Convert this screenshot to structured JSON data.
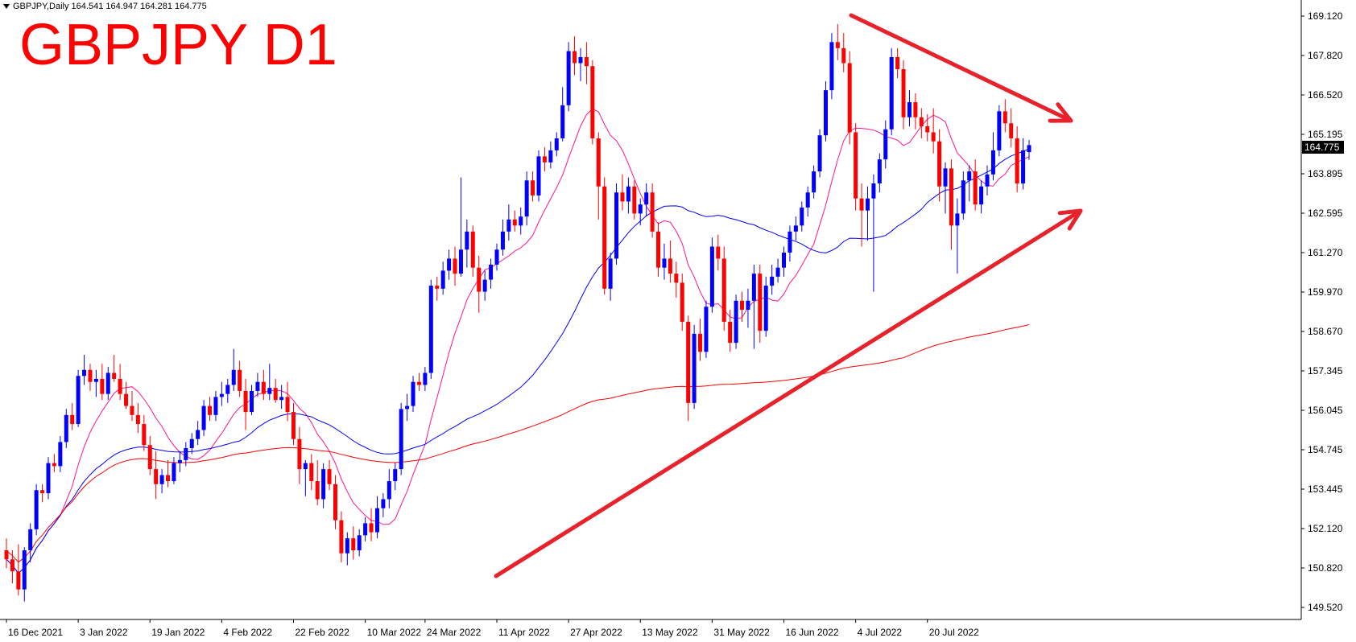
{
  "header": {
    "symbol_line": "GBPJPY,Daily  164.541 164.947 164.281 164.775",
    "title_overlay": "GBPJPY D1"
  },
  "colors": {
    "bull": "#0000ff",
    "bear": "#ff0000",
    "ma_fast": "#ff1493",
    "ma_mid": "#0000ff",
    "ma_slow": "#ff0000",
    "trendline": "#e8222a",
    "axis": "#000000"
  },
  "chart_data": {
    "type": "candlestick",
    "symbol": "GBPJPY",
    "timeframe": "Daily",
    "last_price": "164.775",
    "ohlc_last": {
      "open": 164.541,
      "high": 164.947,
      "low": 164.281,
      "close": 164.775
    },
    "ylim": [
      149.0,
      169.6
    ],
    "y_ticks": [
      "169.120",
      "167.820",
      "166.520",
      "165.195",
      "163.895",
      "162.595",
      "161.270",
      "159.970",
      "158.670",
      "157.345",
      "156.045",
      "154.745",
      "153.445",
      "152.120",
      "150.820",
      "149.520"
    ],
    "x_ticks": [
      "16 Dec 2021",
      "3 Jan 2022",
      "19 Jan 2022",
      "4 Feb 2022",
      "22 Feb 2022",
      "10 Mar 2022",
      "24 Mar 2022",
      "11 Apr 2022",
      "27 Apr 2022",
      "13 May 2022",
      "31 May 2022",
      "16 Jun 2022",
      "4 Jul 2022",
      "20 Jul 2022"
    ],
    "x_tick_index": [
      0,
      12,
      24,
      36,
      48,
      60,
      70,
      82,
      94,
      106,
      118,
      130,
      142,
      154
    ],
    "candles": [
      {
        "o": 151.3,
        "h": 151.7,
        "l": 150.7,
        "c": 151.0
      },
      {
        "o": 151.0,
        "h": 151.3,
        "l": 150.2,
        "c": 150.6
      },
      {
        "o": 150.6,
        "h": 151.5,
        "l": 149.8,
        "c": 150.0
      },
      {
        "o": 150.0,
        "h": 151.4,
        "l": 149.6,
        "c": 151.3
      },
      {
        "o": 151.3,
        "h": 152.2,
        "l": 150.9,
        "c": 152.0
      },
      {
        "o": 152.0,
        "h": 153.5,
        "l": 151.8,
        "c": 153.3
      },
      {
        "o": 153.3,
        "h": 153.5,
        "l": 152.9,
        "c": 153.2
      },
      {
        "o": 153.2,
        "h": 154.4,
        "l": 153.0,
        "c": 154.2
      },
      {
        "o": 154.2,
        "h": 154.5,
        "l": 153.9,
        "c": 154.1
      },
      {
        "o": 154.1,
        "h": 155.1,
        "l": 153.9,
        "c": 154.9
      },
      {
        "o": 154.9,
        "h": 156.0,
        "l": 154.7,
        "c": 155.8
      },
      {
        "o": 155.8,
        "h": 156.2,
        "l": 155.3,
        "c": 155.5
      },
      {
        "o": 155.5,
        "h": 157.3,
        "l": 155.4,
        "c": 157.1
      },
      {
        "o": 157.1,
        "h": 157.8,
        "l": 156.8,
        "c": 157.3
      },
      {
        "o": 157.3,
        "h": 157.5,
        "l": 156.6,
        "c": 156.9
      },
      {
        "o": 156.9,
        "h": 157.3,
        "l": 156.4,
        "c": 157.0
      },
      {
        "o": 157.0,
        "h": 157.5,
        "l": 156.3,
        "c": 156.5
      },
      {
        "o": 156.5,
        "h": 157.4,
        "l": 156.3,
        "c": 157.2
      },
      {
        "o": 157.2,
        "h": 157.8,
        "l": 156.9,
        "c": 157.0
      },
      {
        "o": 157.0,
        "h": 157.5,
        "l": 156.3,
        "c": 156.5
      },
      {
        "o": 156.5,
        "h": 156.9,
        "l": 156.0,
        "c": 156.1
      },
      {
        "o": 156.1,
        "h": 156.6,
        "l": 155.6,
        "c": 155.8
      },
      {
        "o": 155.8,
        "h": 156.2,
        "l": 155.2,
        "c": 155.5
      },
      {
        "o": 155.5,
        "h": 155.8,
        "l": 154.6,
        "c": 154.8
      },
      {
        "o": 154.8,
        "h": 155.1,
        "l": 153.8,
        "c": 154.0
      },
      {
        "o": 154.0,
        "h": 154.6,
        "l": 153.0,
        "c": 153.5
      },
      {
        "o": 153.5,
        "h": 154.0,
        "l": 153.2,
        "c": 153.8
      },
      {
        "o": 153.8,
        "h": 154.3,
        "l": 153.4,
        "c": 153.6
      },
      {
        "o": 153.6,
        "h": 154.4,
        "l": 153.5,
        "c": 154.2
      },
      {
        "o": 154.2,
        "h": 154.6,
        "l": 153.9,
        "c": 154.3
      },
      {
        "o": 154.3,
        "h": 154.9,
        "l": 154.1,
        "c": 154.7
      },
      {
        "o": 154.7,
        "h": 155.2,
        "l": 154.5,
        "c": 155.0
      },
      {
        "o": 155.0,
        "h": 155.6,
        "l": 154.8,
        "c": 155.3
      },
      {
        "o": 155.3,
        "h": 156.3,
        "l": 155.1,
        "c": 156.1
      },
      {
        "o": 156.1,
        "h": 156.4,
        "l": 155.6,
        "c": 155.8
      },
      {
        "o": 155.8,
        "h": 156.6,
        "l": 155.6,
        "c": 156.4
      },
      {
        "o": 156.4,
        "h": 156.9,
        "l": 156.1,
        "c": 156.5
      },
      {
        "o": 156.5,
        "h": 157.0,
        "l": 156.2,
        "c": 156.8
      },
      {
        "o": 156.8,
        "h": 158.0,
        "l": 156.6,
        "c": 157.3
      },
      {
        "o": 157.3,
        "h": 157.6,
        "l": 156.4,
        "c": 156.6
      },
      {
        "o": 156.6,
        "h": 157.0,
        "l": 155.3,
        "c": 155.9
      },
      {
        "o": 155.9,
        "h": 156.8,
        "l": 155.8,
        "c": 156.6
      },
      {
        "o": 156.6,
        "h": 157.2,
        "l": 156.4,
        "c": 156.9
      },
      {
        "o": 156.9,
        "h": 157.3,
        "l": 156.3,
        "c": 156.5
      },
      {
        "o": 156.5,
        "h": 157.5,
        "l": 156.3,
        "c": 156.7
      },
      {
        "o": 156.7,
        "h": 157.0,
        "l": 156.2,
        "c": 156.3
      },
      {
        "o": 156.3,
        "h": 156.8,
        "l": 156.0,
        "c": 156.4
      },
      {
        "o": 156.4,
        "h": 156.9,
        "l": 155.6,
        "c": 155.9
      },
      {
        "o": 155.9,
        "h": 156.2,
        "l": 154.8,
        "c": 155.0
      },
      {
        "o": 155.0,
        "h": 155.4,
        "l": 153.5,
        "c": 154.0
      },
      {
        "o": 154.0,
        "h": 154.3,
        "l": 153.1,
        "c": 154.2
      },
      {
        "o": 154.2,
        "h": 154.5,
        "l": 153.3,
        "c": 153.6
      },
      {
        "o": 153.6,
        "h": 154.3,
        "l": 152.8,
        "c": 153.0
      },
      {
        "o": 153.0,
        "h": 154.2,
        "l": 152.7,
        "c": 154.0
      },
      {
        "o": 154.0,
        "h": 154.3,
        "l": 153.3,
        "c": 153.5
      },
      {
        "o": 153.5,
        "h": 153.8,
        "l": 152.0,
        "c": 152.3
      },
      {
        "o": 152.3,
        "h": 152.6,
        "l": 150.9,
        "c": 151.2
      },
      {
        "o": 151.2,
        "h": 151.9,
        "l": 150.8,
        "c": 151.7
      },
      {
        "o": 151.7,
        "h": 152.1,
        "l": 151.0,
        "c": 151.3
      },
      {
        "o": 151.3,
        "h": 152.0,
        "l": 151.1,
        "c": 151.8
      },
      {
        "o": 151.8,
        "h": 152.4,
        "l": 151.6,
        "c": 152.2
      },
      {
        "o": 152.2,
        "h": 152.7,
        "l": 151.6,
        "c": 151.9
      },
      {
        "o": 151.9,
        "h": 153.1,
        "l": 151.7,
        "c": 152.7
      },
      {
        "o": 152.7,
        "h": 153.2,
        "l": 152.4,
        "c": 153.0
      },
      {
        "o": 153.0,
        "h": 154.0,
        "l": 152.7,
        "c": 153.6
      },
      {
        "o": 153.6,
        "h": 154.2,
        "l": 153.3,
        "c": 154.0
      },
      {
        "o": 154.0,
        "h": 156.2,
        "l": 153.8,
        "c": 156.0
      },
      {
        "o": 156.0,
        "h": 156.5,
        "l": 155.6,
        "c": 156.1
      },
      {
        "o": 156.1,
        "h": 157.1,
        "l": 155.9,
        "c": 156.9
      },
      {
        "o": 156.9,
        "h": 157.2,
        "l": 156.6,
        "c": 156.8
      },
      {
        "o": 156.8,
        "h": 157.4,
        "l": 156.6,
        "c": 157.2
      },
      {
        "o": 157.2,
        "h": 160.3,
        "l": 157.0,
        "c": 160.1
      },
      {
        "o": 160.1,
        "h": 160.4,
        "l": 159.6,
        "c": 160.0
      },
      {
        "o": 160.0,
        "h": 160.9,
        "l": 159.8,
        "c": 160.6
      },
      {
        "o": 160.6,
        "h": 161.3,
        "l": 160.3,
        "c": 161.0
      },
      {
        "o": 161.0,
        "h": 161.4,
        "l": 160.1,
        "c": 160.5
      },
      {
        "o": 160.5,
        "h": 163.7,
        "l": 160.4,
        "c": 161.3
      },
      {
        "o": 161.3,
        "h": 162.3,
        "l": 160.7,
        "c": 161.9
      },
      {
        "o": 161.9,
        "h": 162.1,
        "l": 160.4,
        "c": 160.7
      },
      {
        "o": 160.7,
        "h": 161.1,
        "l": 159.2,
        "c": 159.9
      },
      {
        "o": 159.9,
        "h": 160.6,
        "l": 159.6,
        "c": 160.3
      },
      {
        "o": 160.3,
        "h": 161.0,
        "l": 160.0,
        "c": 160.8
      },
      {
        "o": 160.8,
        "h": 161.5,
        "l": 160.6,
        "c": 161.3
      },
      {
        "o": 161.3,
        "h": 162.3,
        "l": 161.1,
        "c": 161.9
      },
      {
        "o": 161.9,
        "h": 162.8,
        "l": 161.6,
        "c": 162.3
      },
      {
        "o": 162.3,
        "h": 162.6,
        "l": 161.9,
        "c": 162.1
      },
      {
        "o": 162.1,
        "h": 162.7,
        "l": 161.8,
        "c": 162.4
      },
      {
        "o": 162.4,
        "h": 163.9,
        "l": 162.1,
        "c": 163.6
      },
      {
        "o": 163.6,
        "h": 163.9,
        "l": 162.9,
        "c": 163.1
      },
      {
        "o": 163.1,
        "h": 164.6,
        "l": 162.9,
        "c": 164.4
      },
      {
        "o": 164.4,
        "h": 164.7,
        "l": 163.9,
        "c": 164.2
      },
      {
        "o": 164.2,
        "h": 164.9,
        "l": 164.0,
        "c": 164.6
      },
      {
        "o": 164.6,
        "h": 165.2,
        "l": 164.4,
        "c": 165.0
      },
      {
        "o": 165.0,
        "h": 166.7,
        "l": 164.9,
        "c": 166.1
      },
      {
        "o": 166.1,
        "h": 168.2,
        "l": 165.9,
        "c": 167.9
      },
      {
        "o": 167.9,
        "h": 168.4,
        "l": 167.1,
        "c": 167.5
      },
      {
        "o": 167.5,
        "h": 168.0,
        "l": 166.9,
        "c": 167.7
      },
      {
        "o": 167.7,
        "h": 168.2,
        "l": 166.8,
        "c": 167.4
      },
      {
        "o": 167.4,
        "h": 167.6,
        "l": 164.8,
        "c": 165.0
      },
      {
        "o": 165.0,
        "h": 165.2,
        "l": 162.3,
        "c": 163.4
      },
      {
        "o": 163.4,
        "h": 163.7,
        "l": 159.8,
        "c": 160.0
      },
      {
        "o": 160.0,
        "h": 161.2,
        "l": 159.6,
        "c": 161.0
      },
      {
        "o": 161.0,
        "h": 163.5,
        "l": 160.8,
        "c": 163.2
      },
      {
        "o": 163.2,
        "h": 163.8,
        "l": 162.6,
        "c": 162.9
      },
      {
        "o": 162.9,
        "h": 163.7,
        "l": 162.5,
        "c": 163.4
      },
      {
        "o": 163.4,
        "h": 163.6,
        "l": 162.3,
        "c": 162.5
      },
      {
        "o": 162.5,
        "h": 163.0,
        "l": 162.1,
        "c": 162.8
      },
      {
        "o": 162.8,
        "h": 163.5,
        "l": 162.4,
        "c": 163.2
      },
      {
        "o": 163.2,
        "h": 163.5,
        "l": 161.7,
        "c": 161.9
      },
      {
        "o": 161.9,
        "h": 162.2,
        "l": 160.4,
        "c": 160.7
      },
      {
        "o": 160.7,
        "h": 161.5,
        "l": 160.3,
        "c": 161.0
      },
      {
        "o": 161.0,
        "h": 161.6,
        "l": 160.2,
        "c": 160.5
      },
      {
        "o": 160.5,
        "h": 160.9,
        "l": 159.7,
        "c": 160.2
      },
      {
        "o": 160.2,
        "h": 160.5,
        "l": 158.6,
        "c": 158.9
      },
      {
        "o": 158.9,
        "h": 159.1,
        "l": 155.6,
        "c": 156.2
      },
      {
        "o": 156.2,
        "h": 158.8,
        "l": 156.0,
        "c": 158.5
      },
      {
        "o": 158.5,
        "h": 159.0,
        "l": 157.6,
        "c": 157.9
      },
      {
        "o": 157.9,
        "h": 159.6,
        "l": 157.7,
        "c": 159.4
      },
      {
        "o": 159.4,
        "h": 161.7,
        "l": 159.2,
        "c": 161.4
      },
      {
        "o": 161.4,
        "h": 161.8,
        "l": 160.6,
        "c": 161.0
      },
      {
        "o": 161.0,
        "h": 161.4,
        "l": 158.6,
        "c": 158.9
      },
      {
        "o": 158.9,
        "h": 159.3,
        "l": 157.9,
        "c": 158.2
      },
      {
        "o": 158.2,
        "h": 159.8,
        "l": 158.0,
        "c": 159.6
      },
      {
        "o": 159.6,
        "h": 159.9,
        "l": 158.9,
        "c": 159.3
      },
      {
        "o": 159.3,
        "h": 160.0,
        "l": 158.7,
        "c": 159.6
      },
      {
        "o": 159.6,
        "h": 160.8,
        "l": 158.0,
        "c": 160.5
      },
      {
        "o": 160.5,
        "h": 160.8,
        "l": 158.2,
        "c": 158.6
      },
      {
        "o": 158.6,
        "h": 160.4,
        "l": 158.4,
        "c": 160.1
      },
      {
        "o": 160.1,
        "h": 160.8,
        "l": 159.8,
        "c": 160.4
      },
      {
        "o": 160.4,
        "h": 161.0,
        "l": 160.2,
        "c": 160.7
      },
      {
        "o": 160.7,
        "h": 161.4,
        "l": 160.4,
        "c": 161.2
      },
      {
        "o": 161.2,
        "h": 162.1,
        "l": 160.9,
        "c": 161.9
      },
      {
        "o": 161.9,
        "h": 162.4,
        "l": 161.6,
        "c": 162.1
      },
      {
        "o": 162.1,
        "h": 162.9,
        "l": 161.9,
        "c": 162.7
      },
      {
        "o": 162.7,
        "h": 163.4,
        "l": 162.4,
        "c": 163.2
      },
      {
        "o": 163.2,
        "h": 164.1,
        "l": 163.0,
        "c": 163.9
      },
      {
        "o": 163.9,
        "h": 165.3,
        "l": 163.7,
        "c": 165.1
      },
      {
        "o": 165.1,
        "h": 166.9,
        "l": 164.9,
        "c": 166.6
      },
      {
        "o": 166.6,
        "h": 168.5,
        "l": 166.3,
        "c": 168.2
      },
      {
        "o": 168.2,
        "h": 168.8,
        "l": 167.6,
        "c": 168.0
      },
      {
        "o": 168.0,
        "h": 168.5,
        "l": 167.2,
        "c": 167.5
      },
      {
        "o": 167.5,
        "h": 167.9,
        "l": 164.8,
        "c": 165.2
      },
      {
        "o": 165.2,
        "h": 165.5,
        "l": 162.6,
        "c": 163.0
      },
      {
        "o": 163.0,
        "h": 163.5,
        "l": 161.4,
        "c": 162.6
      },
      {
        "o": 162.6,
        "h": 163.4,
        "l": 161.6,
        "c": 163.0
      },
      {
        "o": 163.0,
        "h": 163.8,
        "l": 159.9,
        "c": 163.5
      },
      {
        "o": 163.5,
        "h": 164.5,
        "l": 163.2,
        "c": 164.3
      },
      {
        "o": 164.3,
        "h": 165.6,
        "l": 164.0,
        "c": 165.3
      },
      {
        "o": 165.3,
        "h": 168.0,
        "l": 165.1,
        "c": 167.7
      },
      {
        "o": 167.7,
        "h": 168.0,
        "l": 167.0,
        "c": 167.3
      },
      {
        "o": 167.3,
        "h": 167.6,
        "l": 165.3,
        "c": 165.7
      },
      {
        "o": 165.7,
        "h": 166.6,
        "l": 165.4,
        "c": 166.2
      },
      {
        "o": 166.2,
        "h": 166.5,
        "l": 165.3,
        "c": 165.7
      },
      {
        "o": 165.7,
        "h": 166.0,
        "l": 165.0,
        "c": 165.4
      },
      {
        "o": 165.4,
        "h": 165.8,
        "l": 164.9,
        "c": 165.2
      },
      {
        "o": 165.2,
        "h": 166.0,
        "l": 164.5,
        "c": 164.9
      },
      {
        "o": 164.9,
        "h": 165.3,
        "l": 162.9,
        "c": 163.4
      },
      {
        "o": 163.4,
        "h": 164.2,
        "l": 162.5,
        "c": 164.0
      },
      {
        "o": 164.0,
        "h": 164.3,
        "l": 161.3,
        "c": 162.1
      },
      {
        "o": 162.1,
        "h": 163.0,
        "l": 160.5,
        "c": 162.5
      },
      {
        "o": 162.5,
        "h": 163.9,
        "l": 162.3,
        "c": 163.6
      },
      {
        "o": 163.6,
        "h": 164.1,
        "l": 162.9,
        "c": 163.9
      },
      {
        "o": 163.9,
        "h": 164.3,
        "l": 162.6,
        "c": 162.8
      },
      {
        "o": 162.8,
        "h": 163.6,
        "l": 162.5,
        "c": 163.4
      },
      {
        "o": 163.4,
        "h": 164.1,
        "l": 163.1,
        "c": 163.8
      },
      {
        "o": 163.8,
        "h": 165.2,
        "l": 163.6,
        "c": 164.6
      },
      {
        "o": 164.6,
        "h": 166.1,
        "l": 164.4,
        "c": 165.9
      },
      {
        "o": 165.9,
        "h": 166.3,
        "l": 165.2,
        "c": 165.5
      },
      {
        "o": 165.5,
        "h": 166.0,
        "l": 164.7,
        "c": 165.0
      },
      {
        "o": 165.0,
        "h": 165.4,
        "l": 163.2,
        "c": 163.5
      },
      {
        "o": 163.5,
        "h": 165.0,
        "l": 163.3,
        "c": 164.6
      },
      {
        "o": 164.541,
        "h": 164.947,
        "l": 164.281,
        "c": 164.775
      }
    ],
    "annotations": [
      {
        "type": "arrow",
        "description": "descending resistance trendline with arrowhead"
      },
      {
        "type": "arrow",
        "description": "ascending support trendline with arrowhead"
      }
    ],
    "grid": false,
    "moving_averages": [
      "fast (pink)",
      "medium (blue)",
      "slow (red)"
    ]
  }
}
